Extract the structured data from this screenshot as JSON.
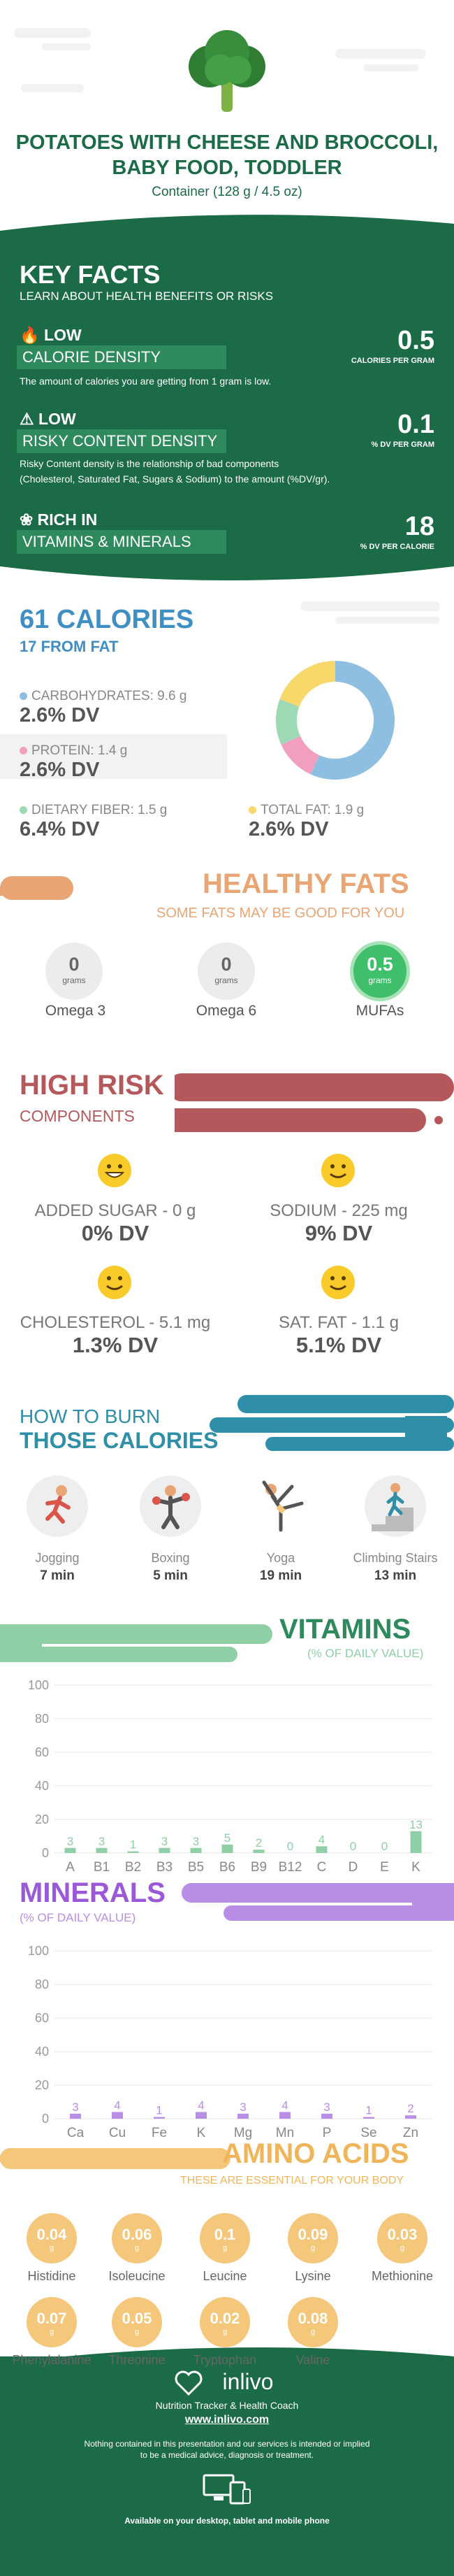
{
  "header": {
    "title": "POTATOES WITH CHEESE AND BROCCOLI, BABY FOOD, TODDLER",
    "subtitle": "Container (128 g / 4.5 oz)",
    "icon": "broccoli-icon"
  },
  "key_facts": {
    "title": "KEY FACTS",
    "subtitle": "LEARN ABOUT HEALTH BENEFITS OR RISKS",
    "calorie_density": {
      "level": "LOW",
      "label": "CALORIE DENSITY",
      "value": "0.5",
      "unit": "CALORIES PER GRAM",
      "description": "The amount of calories you are getting from 1 gram is low."
    },
    "risky_content": {
      "level": "LOW",
      "label": "RISKY CONTENT DENSITY",
      "value": "0.1",
      "unit": "% DV PER GRAM",
      "description_1": "Risky Content density is the relationship of bad components",
      "description_2": "(Cholesterol, Saturated Fat, Sugars & Sodium) to the amount (%DV/gr)."
    },
    "vitamins": {
      "level": "RICH  IN",
      "label": "VITAMINS & MINERALS",
      "value": "18",
      "unit": "% DV PER CALORIE"
    }
  },
  "calories": {
    "title": "61 CALORIES",
    "subtitle": "17 FROM FAT",
    "carbs": {
      "label": "CARBOHYDRATES: 9.6 g",
      "dv": "2.6% DV",
      "color": "#8fbfe0"
    },
    "protein": {
      "label": "PROTEIN: 1.4 g",
      "dv": "2.6% DV",
      "color": "#f29fbf"
    },
    "fiber": {
      "label": "DIETARY FIBER: 1.5 g",
      "dv": "6.4% DV",
      "color": "#9ed9b6"
    },
    "fat": {
      "label": "TOTAL FAT: 1.9 g",
      "dv": "2.6% DV",
      "color": "#f8d86b"
    }
  },
  "healthy_fats": {
    "title": "HEALTHY FATS",
    "subtitle": "SOME FATS MAY BE GOOD FOR YOU",
    "items": [
      {
        "value": "0",
        "unit": "grams",
        "name": "Omega 3"
      },
      {
        "value": "0",
        "unit": "grams",
        "name": "Omega 6"
      },
      {
        "value": "0.5",
        "unit": "grams",
        "name": "MUFAs"
      }
    ]
  },
  "high_risk": {
    "title": "HIGH RISK",
    "subtitle": "COMPONENTS",
    "items": [
      {
        "label": "ADDED SUGAR - 0 g",
        "dv": "0% DV",
        "icon": "grinning-face-icon"
      },
      {
        "label": "SODIUM - 225 mg",
        "dv": "9% DV",
        "icon": "smiling-face-icon"
      },
      {
        "label": "CHOLESTEROL - 5.1 mg",
        "dv": "1.3% DV",
        "icon": "smiling-face-icon"
      },
      {
        "label": "SAT. FAT - 1.1 g",
        "dv": "5.1% DV",
        "icon": "smiling-face-icon"
      }
    ]
  },
  "burn": {
    "title_1": "HOW TO BURN",
    "title_2": "THOSE CALORIES",
    "items": [
      {
        "name": "Jogging",
        "minutes": "7 min",
        "icon": "jogging-icon"
      },
      {
        "name": "Boxing",
        "minutes": "5 min",
        "icon": "boxing-icon"
      },
      {
        "name": "Yoga",
        "minutes": "19 min",
        "icon": "yoga-icon"
      },
      {
        "name": "Climbing Stairs",
        "minutes": "13 min",
        "icon": "stairs-icon"
      }
    ]
  },
  "vitamins": {
    "title": "VITAMINS",
    "subtitle": "(% OF DAILY VALUE)",
    "chart_data": {
      "type": "bar",
      "categories": [
        "A",
        "B1",
        "B2",
        "B3",
        "B5",
        "B6",
        "B9",
        "B12",
        "C",
        "D",
        "E",
        "K"
      ],
      "values": [
        3,
        3,
        1,
        3,
        3,
        5,
        2,
        0,
        4,
        0,
        0,
        13
      ],
      "ylim": [
        0,
        100
      ],
      "yticks": [
        0,
        20,
        40,
        60,
        80,
        100
      ],
      "color": "#8fcfa5"
    }
  },
  "minerals": {
    "title": "MINERALS",
    "subtitle": "(% OF DAILY VALUE)",
    "chart_data": {
      "type": "bar",
      "categories": [
        "Ca",
        "Cu",
        "Fe",
        "K",
        "Mg",
        "Mn",
        "P",
        "Se",
        "Zn"
      ],
      "values": [
        3,
        4,
        1,
        4,
        3,
        4,
        3,
        1,
        2
      ],
      "ylim": [
        0,
        100
      ],
      "yticks": [
        0,
        20,
        40,
        60,
        80,
        100
      ],
      "color": "#b88ee6"
    }
  },
  "amino": {
    "title": "AMINO ACIDS",
    "subtitle": "THESE ARE ESSENTIAL FOR YOUR BODY",
    "items": [
      {
        "value": "0.04",
        "unit": "g",
        "name": "Histidine"
      },
      {
        "value": "0.06",
        "unit": "g",
        "name": "Isoleucine"
      },
      {
        "value": "0.1",
        "unit": "g",
        "name": "Leucine"
      },
      {
        "value": "0.09",
        "unit": "g",
        "name": "Lysine"
      },
      {
        "value": "0.03",
        "unit": "g",
        "name": "Methionine"
      },
      {
        "value": "0.07",
        "unit": "g",
        "name": "Phenylalanine"
      },
      {
        "value": "0.05",
        "unit": "g",
        "name": "Threonine"
      },
      {
        "value": "0.02",
        "unit": "g",
        "name": "Tryptophan"
      },
      {
        "value": "0.08",
        "unit": "g",
        "name": "Valine"
      }
    ]
  },
  "footer": {
    "brand": "inlivo",
    "tagline": "Nutrition Tracker & Health Coach",
    "url": "www.inlivo.com",
    "disclaimer_1": "Nothing contained in this presentation and our services is intended or implied",
    "disclaimer_2": "to be a medical advice, diagnosis or treatment.",
    "devices": "Available on your desktop, tablet and mobile phone"
  }
}
